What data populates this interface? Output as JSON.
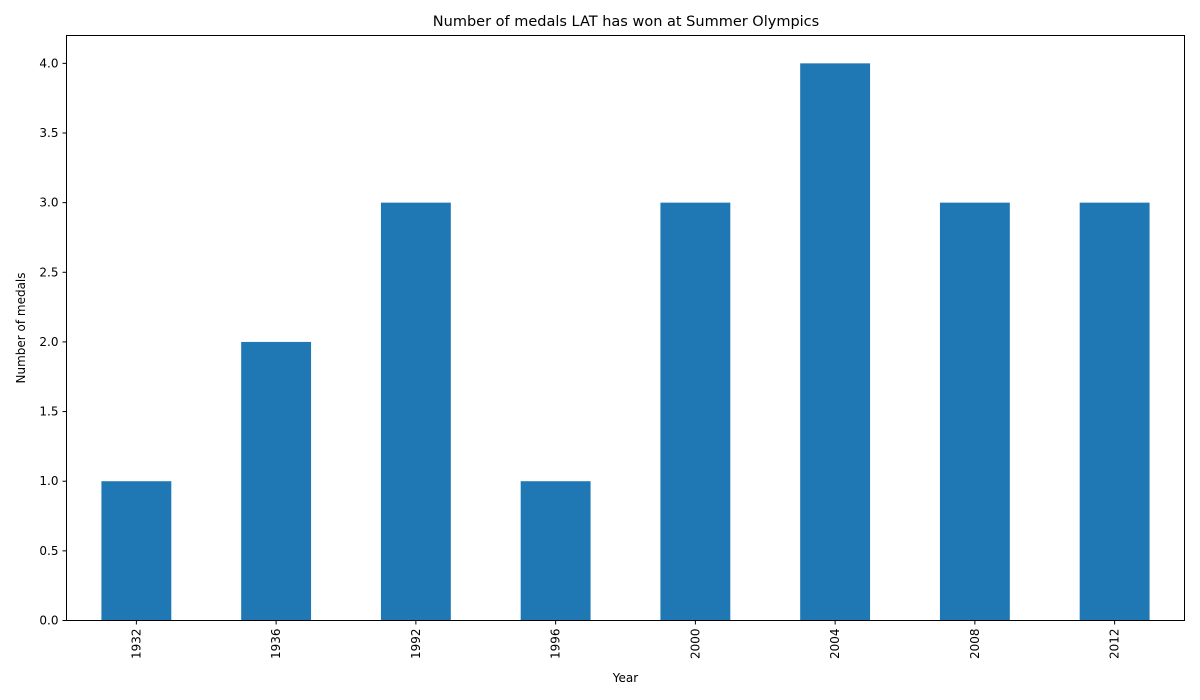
{
  "chart_data": {
    "type": "bar",
    "title": "Number of medals LAT has won at Summer Olympics",
    "xlabel": "Year",
    "ylabel": "Number of medals",
    "categories": [
      "1932",
      "1936",
      "1992",
      "1996",
      "2000",
      "2004",
      "2008",
      "2012"
    ],
    "values": [
      1,
      2,
      3,
      1,
      3,
      4,
      3,
      3
    ],
    "ylim": [
      0,
      4.2
    ],
    "yticks": [
      0.0,
      0.5,
      1.0,
      1.5,
      2.0,
      2.5,
      3.0,
      3.5,
      4.0
    ],
    "ytick_labels": [
      "0.0",
      "0.5",
      "1.0",
      "1.5",
      "2.0",
      "2.5",
      "3.0",
      "3.5",
      "4.0"
    ],
    "xtick_rotation": "vertical",
    "bar_color": "#1f77b4",
    "grid": false,
    "legend": "none"
  }
}
